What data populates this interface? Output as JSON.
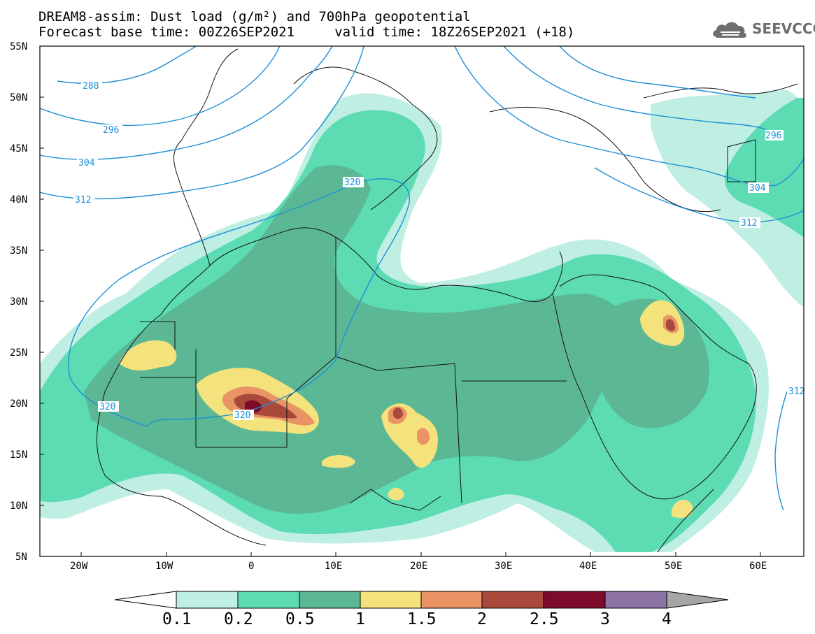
{
  "title": {
    "line1": "DREAM8-assim: Dust load (g/m²) and 700hPa geopotential",
    "line2": "Forecast base time: 00Z26SEP2021     valid time: 18Z26SEP2021 (+18)"
  },
  "logo": {
    "text": "SEEVCCC",
    "icon": "cloud-icon"
  },
  "map": {
    "lat_labels": [
      "55N",
      "50N",
      "45N",
      "40N",
      "35N",
      "30N",
      "25N",
      "20N",
      "15N",
      "10N",
      "5N"
    ],
    "lon_labels": [
      "20W",
      "10W",
      "0",
      "10E",
      "20E",
      "30E",
      "40E",
      "50E",
      "60E"
    ],
    "contour_labels": [
      "288",
      "296",
      "304",
      "312",
      "320",
      "320",
      "320",
      "304",
      "312",
      "312",
      "296"
    ]
  },
  "colorbar": {
    "labels": [
      "0.1",
      "0.2",
      "0.5",
      "1",
      "1.5",
      "2",
      "2.5",
      "3",
      "4"
    ],
    "colors": [
      "#ffffff",
      "#bfeee3",
      "#5ddcb4",
      "#5cb894",
      "#f4e27d",
      "#ea9466",
      "#a9493c",
      "#7d0b2b",
      "#8d72a6",
      "#a6a6a6"
    ]
  }
}
